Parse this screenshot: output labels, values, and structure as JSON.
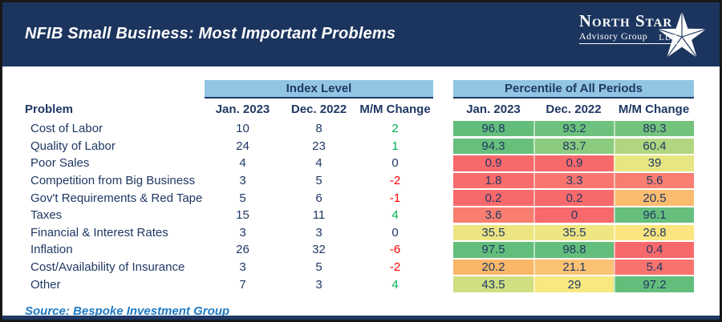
{
  "header": {
    "title": "NFIB Small Business: Most Important Problems",
    "logo": {
      "name": "North Star",
      "sub": "Advisory Group",
      "llc": "LLC",
      "star_icon": "five-point-star"
    }
  },
  "labels": {
    "problem": "Problem",
    "index_group": "Index Level",
    "pct_group": "Percentile of All Periods",
    "columns": [
      "Jan. 2023",
      "Dec. 2022",
      "M/M Change"
    ]
  },
  "colors": {
    "banner": "#1C355F",
    "navy_text": "#1F3864",
    "group_header_bg": "#92C5E3",
    "positive_change": "#00B050",
    "negative_change": "#FF0000",
    "source_text": "#1F7AC4",
    "heatmap_min": "#F8696B",
    "heatmap_mid": "#FFEB84",
    "heatmap_max": "#63BE7B"
  },
  "chart_data": {
    "type": "table",
    "title": "NFIB Small Business: Most Important Problems",
    "column_groups": [
      "Index Level",
      "Percentile of All Periods"
    ],
    "columns": [
      "Problem",
      "Jan. 2023",
      "Dec. 2022",
      "M/M Change",
      "Jan. 2023",
      "Dec. 2022",
      "M/M Change"
    ],
    "rows": [
      {
        "problem": "Cost of Labor",
        "index": {
          "jan": "10",
          "dec": "8",
          "mm": "2",
          "mm_sign": "positive"
        },
        "percentile": [
          {
            "v": "96.8",
            "color": "#63BE7B"
          },
          {
            "v": "93.2",
            "color": "#6CC17C"
          },
          {
            "v": "89.3",
            "color": "#74C37D"
          }
        ]
      },
      {
        "problem": "Quality of Labor",
        "index": {
          "jan": "24",
          "dec": "23",
          "mm": "1",
          "mm_sign": "positive"
        },
        "percentile": [
          {
            "v": "94.3",
            "color": "#68BF7C"
          },
          {
            "v": "83.7",
            "color": "#8BCB7E"
          },
          {
            "v": "60.4",
            "color": "#B2D67F"
          }
        ]
      },
      {
        "problem": "Poor Sales",
        "index": {
          "jan": "4",
          "dec": "4",
          "mm": "0",
          "mm_sign": "zero"
        },
        "percentile": [
          {
            "v": "0.9",
            "color": "#F8696B"
          },
          {
            "v": "0.9",
            "color": "#F8696B"
          },
          {
            "v": "39",
            "color": "#E7E683"
          }
        ]
      },
      {
        "problem": "Competition from Big Business",
        "index": {
          "jan": "3",
          "dec": "5",
          "mm": "-2",
          "mm_sign": "negative"
        },
        "percentile": [
          {
            "v": "1.8",
            "color": "#F86C6C"
          },
          {
            "v": "3.3",
            "color": "#F9766F"
          },
          {
            "v": "5.6",
            "color": "#F87E71"
          }
        ]
      },
      {
        "problem": "Gov't Requirements & Red Tape",
        "index": {
          "jan": "5",
          "dec": "6",
          "mm": "-1",
          "mm_sign": "negative"
        },
        "percentile": [
          {
            "v": "0.2",
            "color": "#F8696B"
          },
          {
            "v": "0.2",
            "color": "#F8696B"
          },
          {
            "v": "20.5",
            "color": "#FBBC70"
          }
        ]
      },
      {
        "problem": "Taxes",
        "index": {
          "jan": "15",
          "dec": "11",
          "mm": "4",
          "mm_sign": "positive"
        },
        "percentile": [
          {
            "v": "3.6",
            "color": "#F97E6F"
          },
          {
            "v": "0",
            "color": "#F8696B"
          },
          {
            "v": "96.1",
            "color": "#66BF7C"
          }
        ]
      },
      {
        "problem": "Financial & Interest Rates",
        "index": {
          "jan": "3",
          "dec": "3",
          "mm": "0",
          "mm_sign": "zero"
        },
        "percentile": [
          {
            "v": "35.5",
            "color": "#EDE582"
          },
          {
            "v": "35.5",
            "color": "#EFE683"
          },
          {
            "v": "26.8",
            "color": "#FBE57E"
          }
        ]
      },
      {
        "problem": "Inflation",
        "index": {
          "jan": "26",
          "dec": "32",
          "mm": "-6",
          "mm_sign": "negative"
        },
        "percentile": [
          {
            "v": "97.5",
            "color": "#64BE7B"
          },
          {
            "v": "98.8",
            "color": "#63BE7B"
          },
          {
            "v": "0.4",
            "color": "#F8696B"
          }
        ]
      },
      {
        "problem": "Cost/Availability of Insurance",
        "index": {
          "jan": "3",
          "dec": "5",
          "mm": "-2",
          "mm_sign": "negative"
        },
        "percentile": [
          {
            "v": "20.2",
            "color": "#FBB768"
          },
          {
            "v": "21.1",
            "color": "#FBC274"
          },
          {
            "v": "5.4",
            "color": "#F8736D"
          }
        ]
      },
      {
        "problem": "Other",
        "index": {
          "jan": "7",
          "dec": "3",
          "mm": "4",
          "mm_sign": "positive"
        },
        "percentile": [
          {
            "v": "43.5",
            "color": "#D0DF81"
          },
          {
            "v": "29",
            "color": "#F9E77F"
          },
          {
            "v": "97.2",
            "color": "#64BE7B"
          }
        ]
      }
    ]
  },
  "footer": {
    "source": "Source: Bespoke Investment Group"
  }
}
